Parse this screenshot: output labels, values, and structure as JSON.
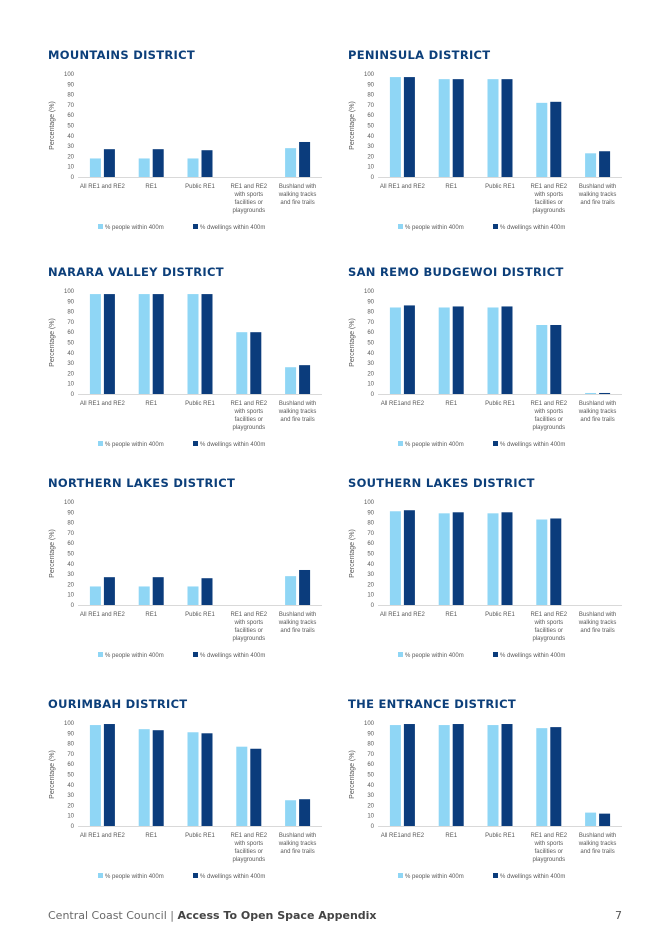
{
  "footer": {
    "org": "Central Coast Council",
    "separator": "|",
    "title": "Access To Open Space Appendix",
    "page_number": "7"
  },
  "colors": {
    "people": "#8fd6f5",
    "dwellings": "#0b3c7c",
    "title": "#0c3f7a"
  },
  "chart_data": [
    {
      "type": "bar",
      "title": "MOUNTAINS DISTRICT",
      "ylabel": "Percentage (%)",
      "ylim": [
        0,
        100
      ],
      "yticks": [
        "0",
        "10",
        "20",
        "30",
        "40",
        "50",
        "60",
        "70",
        "80",
        "90",
        "100"
      ],
      "categories": [
        [
          "All RE1 and RE2"
        ],
        [
          "RE1"
        ],
        [
          "Public RE1"
        ],
        [
          "RE1 and RE2",
          "with sports",
          "facilities or",
          "playgrounds"
        ],
        [
          "Bushland with",
          "walking tracks",
          "and fire trails"
        ]
      ],
      "series": [
        {
          "name": "% people within 400m",
          "values": [
            18,
            18,
            18,
            0,
            28
          ]
        },
        {
          "name": "% dwellings within 400m",
          "values": [
            27,
            27,
            26,
            0,
            34
          ]
        }
      ],
      "legend": "bottom"
    },
    {
      "type": "bar",
      "title": "PENINSULA DISTRICT",
      "ylabel": "Percentage (%)",
      "ylim": [
        0,
        100
      ],
      "yticks": [
        "0",
        "10",
        "20",
        "30",
        "40",
        "50",
        "60",
        "70",
        "80",
        "90",
        "100"
      ],
      "categories": [
        [
          "All RE1 and RE2"
        ],
        [
          "RE1"
        ],
        [
          "Public RE1"
        ],
        [
          "RE1 and RE2",
          "with sports",
          "facilities or",
          "playgrounds"
        ],
        [
          "Bushland with",
          "walking tracks",
          "and fire trails"
        ]
      ],
      "series": [
        {
          "name": "% people within 400m",
          "values": [
            97,
            95,
            95,
            72,
            23
          ]
        },
        {
          "name": "% dwellings within 400m",
          "values": [
            97,
            95,
            95,
            73,
            25
          ]
        }
      ],
      "legend": "bottom"
    },
    {
      "type": "bar",
      "title": "NARARA VALLEY DISTRICT",
      "ylabel": "Percentage (%)",
      "ylim": [
        0,
        100
      ],
      "yticks": [
        "0",
        "10",
        "20",
        "30",
        "40",
        "50",
        "60",
        "70",
        "80",
        "90",
        "100"
      ],
      "categories": [
        [
          "All RE1 and RE2"
        ],
        [
          "RE1"
        ],
        [
          "Public RE1"
        ],
        [
          "RE1 and RE2",
          "with sports",
          "facilities or",
          "playgrounds"
        ],
        [
          "Bushland with",
          "walking tracks",
          "and fire trails"
        ]
      ],
      "series": [
        {
          "name": "% people within 400m",
          "values": [
            97,
            97,
            97,
            60,
            26
          ]
        },
        {
          "name": "% dwellings within 400m",
          "values": [
            97,
            97,
            97,
            60,
            28
          ]
        }
      ],
      "legend": "bottom"
    },
    {
      "type": "bar",
      "title": "SAN REMO BUDGEWOI DISTRICT",
      "ylabel": "Percentage (%)",
      "ylim": [
        0,
        100
      ],
      "yticks": [
        "0",
        "10",
        "20",
        "30",
        "40",
        "50",
        "60",
        "70",
        "80",
        "90",
        "100"
      ],
      "categories": [
        [
          "All RE1and RE2"
        ],
        [
          "RE1"
        ],
        [
          "Public RE1"
        ],
        [
          "RE1 and RE2",
          "with sports",
          "facilities or",
          "playgrounds"
        ],
        [
          "Bushland with",
          "walking tracks",
          "and fire trails"
        ]
      ],
      "series": [
        {
          "name": "% people within 400m",
          "values": [
            84,
            84,
            84,
            67,
            1
          ]
        },
        {
          "name": "% dwellings within 400m",
          "values": [
            86,
            85,
            85,
            67,
            1
          ]
        }
      ],
      "legend": "bottom"
    },
    {
      "type": "bar",
      "title": "NORTHERN LAKES DISTRICT",
      "ylabel": "Percentage (%)",
      "ylim": [
        0,
        100
      ],
      "yticks": [
        "0",
        "10",
        "20",
        "30",
        "40",
        "50",
        "60",
        "70",
        "80",
        "90",
        "100"
      ],
      "categories": [
        [
          "All RE1 and RE2"
        ],
        [
          "RE1"
        ],
        [
          "Public RE1"
        ],
        [
          "RE1 and RE2",
          "with sports",
          "facilities or",
          "playgrounds"
        ],
        [
          "Bushland with",
          "walking tracks",
          "and fire trails"
        ]
      ],
      "series": [
        {
          "name": "% people within 400m",
          "values": [
            18,
            18,
            18,
            0,
            28
          ]
        },
        {
          "name": "% dwellings within 400m",
          "values": [
            27,
            27,
            26,
            0,
            34
          ]
        }
      ],
      "legend": "bottom"
    },
    {
      "type": "bar",
      "title": "SOUTHERN LAKES DISTRICT",
      "ylabel": "Percentage (%)",
      "ylim": [
        0,
        100
      ],
      "yticks": [
        "0",
        "10",
        "20",
        "30",
        "40",
        "50",
        "60",
        "70",
        "80",
        "90",
        "100"
      ],
      "categories": [
        [
          "All RE1 and RE2"
        ],
        [
          "RE1"
        ],
        [
          "Public RE1"
        ],
        [
          "RE1 and RE2",
          "with sports",
          "facilities or",
          "playgrounds"
        ],
        [
          "Bushland with",
          "walking tracks",
          "and fire trails"
        ]
      ],
      "series": [
        {
          "name": "% people within 400m",
          "values": [
            91,
            89,
            89,
            83,
            0
          ]
        },
        {
          "name": "% dwellings within 400m",
          "values": [
            92,
            90,
            90,
            84,
            0
          ]
        }
      ],
      "legend": "bottom"
    },
    {
      "type": "bar",
      "title": "OURIMBAH DISTRICT",
      "ylabel": "Percentage (%)",
      "ylim": [
        0,
        100
      ],
      "yticks": [
        "0",
        "10",
        "20",
        "30",
        "40",
        "50",
        "60",
        "70",
        "80",
        "90",
        "100"
      ],
      "categories": [
        [
          "All RE1 and RE2"
        ],
        [
          "RE1"
        ],
        [
          "Public RE1"
        ],
        [
          "RE1 and RE2",
          "with sports",
          "facilities or",
          "playgrounds"
        ],
        [
          "Bushland with",
          "walking tracks",
          "and fire trails"
        ]
      ],
      "series": [
        {
          "name": "% people within 400m",
          "values": [
            98,
            94,
            91,
            77,
            25
          ]
        },
        {
          "name": "% dwellings within 400m",
          "values": [
            99,
            93,
            90,
            75,
            26
          ]
        }
      ],
      "legend": "bottom"
    },
    {
      "type": "bar",
      "title": "THE ENTRANCE DISTRICT",
      "ylabel": "Percentage (%)",
      "ylim": [
        0,
        100
      ],
      "yticks": [
        "0",
        "10",
        "20",
        "30",
        "40",
        "50",
        "60",
        "70",
        "80",
        "90",
        "100"
      ],
      "categories": [
        [
          "All RE1and RE2"
        ],
        [
          "RE1"
        ],
        [
          "Public RE1"
        ],
        [
          "RE1 and RE2",
          "with sports",
          "facilities or",
          "playgrounds"
        ],
        [
          "Bushland with",
          "walking tracks",
          "and fire trails"
        ]
      ],
      "series": [
        {
          "name": "% people within 400m",
          "values": [
            98,
            98,
            98,
            95,
            13
          ]
        },
        {
          "name": "% dwellings within 400m",
          "values": [
            99,
            99,
            99,
            96,
            12
          ]
        }
      ],
      "legend": "bottom"
    }
  ]
}
